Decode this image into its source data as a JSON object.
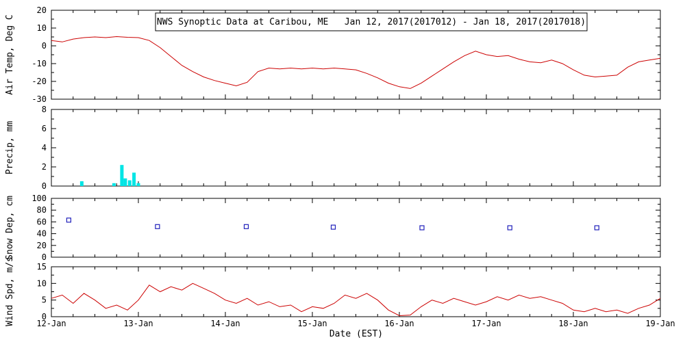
{
  "chart_data": {
    "title": "NWS Synoptic Data at Caribou, ME   Jan 12, 2017(2017012) - Jan 18, 2017(2017018)",
    "xlabel": "Date (EST)",
    "x_range": [
      12,
      19
    ],
    "x_tick_labels": [
      "12-Jan",
      "13-Jan",
      "14-Jan",
      "15-Jan",
      "16-Jan",
      "17-Jan",
      "18-Jan",
      "19-Jan"
    ],
    "panels": [
      {
        "type": "line",
        "ylabel": "Air Temp, Deg C",
        "ylim": [
          -30,
          20
        ],
        "yticks": [
          -30,
          -20,
          -10,
          0,
          10,
          20
        ],
        "color": "#cc0000",
        "points": [
          [
            12,
            3
          ],
          [
            12.125,
            2.2
          ],
          [
            12.25,
            3.8
          ],
          [
            12.375,
            4.6
          ],
          [
            12.5,
            5
          ],
          [
            12.625,
            4.6
          ],
          [
            12.75,
            5.2
          ],
          [
            12.875,
            4.8
          ],
          [
            13,
            4.6
          ],
          [
            13.125,
            3
          ],
          [
            13.25,
            -1
          ],
          [
            13.375,
            -6
          ],
          [
            13.5,
            -11
          ],
          [
            13.625,
            -14.5
          ],
          [
            13.75,
            -17.5
          ],
          [
            13.875,
            -19.5
          ],
          [
            14,
            -21
          ],
          [
            14.125,
            -22.5
          ],
          [
            14.25,
            -20.5
          ],
          [
            14.375,
            -14.5
          ],
          [
            14.5,
            -12.5
          ],
          [
            14.625,
            -13
          ],
          [
            14.75,
            -12.5
          ],
          [
            14.875,
            -13
          ],
          [
            15,
            -12.5
          ],
          [
            15.125,
            -13
          ],
          [
            15.25,
            -12.5
          ],
          [
            15.375,
            -13
          ],
          [
            15.5,
            -13.5
          ],
          [
            15.625,
            -15.5
          ],
          [
            15.75,
            -18
          ],
          [
            15.875,
            -21
          ],
          [
            16,
            -23
          ],
          [
            16.125,
            -24
          ],
          [
            16.25,
            -21
          ],
          [
            16.375,
            -17
          ],
          [
            16.5,
            -13
          ],
          [
            16.625,
            -9
          ],
          [
            16.75,
            -5.5
          ],
          [
            16.875,
            -3
          ],
          [
            17,
            -5
          ],
          [
            17.125,
            -6
          ],
          [
            17.25,
            -5.5
          ],
          [
            17.375,
            -7.5
          ],
          [
            17.5,
            -9
          ],
          [
            17.625,
            -9.5
          ],
          [
            17.75,
            -8
          ],
          [
            17.875,
            -10
          ],
          [
            18,
            -13.5
          ],
          [
            18.125,
            -16.5
          ],
          [
            18.25,
            -17.5
          ],
          [
            18.375,
            -17
          ],
          [
            18.5,
            -16.5
          ],
          [
            18.625,
            -12
          ],
          [
            18.75,
            -9
          ],
          [
            18.875,
            -8
          ],
          [
            19,
            -7
          ]
        ]
      },
      {
        "type": "bar",
        "ylabel": "Precip, mm",
        "ylim": [
          0,
          8
        ],
        "yticks": [
          0,
          2,
          4,
          6,
          8
        ],
        "color": "#00e5e5",
        "points": [
          [
            12.35,
            0.5
          ],
          [
            12.72,
            0.3
          ],
          [
            12.81,
            2.2
          ],
          [
            12.85,
            0.8
          ],
          [
            12.9,
            0.6
          ],
          [
            12.95,
            1.4
          ],
          [
            13,
            0.3
          ]
        ]
      },
      {
        "type": "scatter",
        "ylabel": "Snow Dep, cm",
        "ylim": [
          0,
          100
        ],
        "yticks": [
          0,
          20,
          40,
          60,
          80,
          100
        ],
        "color": "#2020bb",
        "marker": "open-square",
        "points": [
          [
            12.2,
            63
          ],
          [
            13.22,
            52
          ],
          [
            14.24,
            52
          ],
          [
            15.24,
            51
          ],
          [
            16.26,
            50
          ],
          [
            17.27,
            50
          ],
          [
            18.27,
            50
          ]
        ]
      },
      {
        "type": "line",
        "ylabel": "Wind Spd, m/s",
        "ylim": [
          0,
          15
        ],
        "yticks": [
          0,
          5,
          10,
          15
        ],
        "color": "#cc0000",
        "points": [
          [
            12,
            5.5
          ],
          [
            12.125,
            6.5
          ],
          [
            12.25,
            4
          ],
          [
            12.375,
            7
          ],
          [
            12.5,
            5
          ],
          [
            12.625,
            2.5
          ],
          [
            12.75,
            3.5
          ],
          [
            12.875,
            2
          ],
          [
            13,
            5
          ],
          [
            13.125,
            9.5
          ],
          [
            13.25,
            7.5
          ],
          [
            13.375,
            9
          ],
          [
            13.5,
            8
          ],
          [
            13.625,
            10
          ],
          [
            13.75,
            8.5
          ],
          [
            13.875,
            7
          ],
          [
            14,
            5
          ],
          [
            14.125,
            4
          ],
          [
            14.25,
            5.5
          ],
          [
            14.375,
            3.5
          ],
          [
            14.5,
            4.5
          ],
          [
            14.625,
            3
          ],
          [
            14.75,
            3.5
          ],
          [
            14.875,
            1.5
          ],
          [
            15,
            3
          ],
          [
            15.125,
            2.5
          ],
          [
            15.25,
            4
          ],
          [
            15.375,
            6.5
          ],
          [
            15.5,
            5.5
          ],
          [
            15.625,
            7
          ],
          [
            15.75,
            5
          ],
          [
            15.875,
            2
          ],
          [
            16,
            0.3
          ],
          [
            16.125,
            0.5
          ],
          [
            16.25,
            3
          ],
          [
            16.375,
            5
          ],
          [
            16.5,
            4
          ],
          [
            16.625,
            5.5
          ],
          [
            16.75,
            4.5
          ],
          [
            16.875,
            3.5
          ],
          [
            17,
            4.5
          ],
          [
            17.125,
            6
          ],
          [
            17.25,
            5
          ],
          [
            17.375,
            6.5
          ],
          [
            17.5,
            5.5
          ],
          [
            17.625,
            6
          ],
          [
            17.75,
            5
          ],
          [
            17.875,
            4
          ],
          [
            18,
            2
          ],
          [
            18.125,
            1.5
          ],
          [
            18.25,
            2.5
          ],
          [
            18.375,
            1.5
          ],
          [
            18.5,
            2
          ],
          [
            18.625,
            1
          ],
          [
            18.75,
            2.5
          ],
          [
            18.875,
            3.5
          ],
          [
            19,
            5.5
          ]
        ]
      }
    ]
  }
}
